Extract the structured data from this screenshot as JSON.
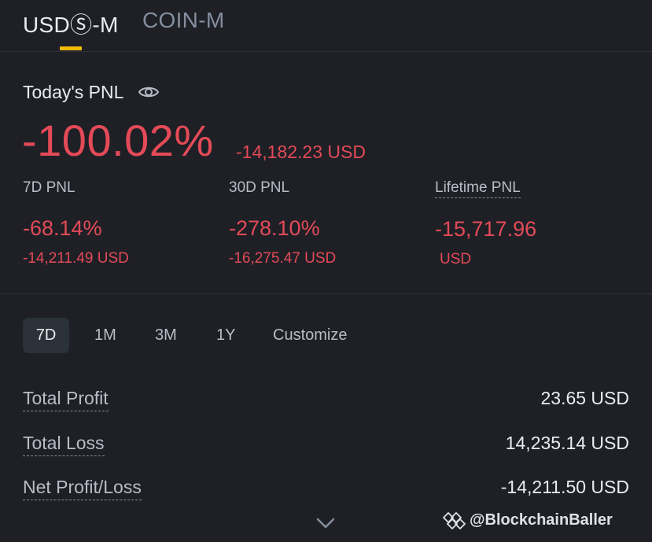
{
  "tabs": [
    {
      "label": "USDⓈ-M",
      "active": true
    },
    {
      "label": "COIN-M",
      "active": false
    }
  ],
  "today": {
    "label": "Today's PNL",
    "percent": "-100.02%",
    "usd": "-14,182.23 USD"
  },
  "stats": [
    {
      "label": "7D PNL",
      "percent": "-68.14%",
      "usd": "-14,211.49 USD"
    },
    {
      "label": "30D PNL",
      "percent": "-278.10%",
      "usd": "-16,275.47 USD"
    },
    {
      "label": "Lifetime PNL",
      "value": "-15,717.96",
      "unit": "USD"
    }
  ],
  "ranges": [
    "7D",
    "1M",
    "3M",
    "1Y",
    "Customize"
  ],
  "summary": [
    {
      "label": "Total Profit",
      "value": "23.65 USD"
    },
    {
      "label": "Total Loss",
      "value": "14,235.14 USD"
    },
    {
      "label": "Net Profit/Loss",
      "value": "-14,211.50 USD"
    }
  ],
  "watermark": "@BlockchainBaller",
  "colors": {
    "background": "#1e2026",
    "accent": "#f0b90b",
    "negative": "#e44a57",
    "text_primary": "#eaecef",
    "text_secondary": "#b7bdc6"
  }
}
